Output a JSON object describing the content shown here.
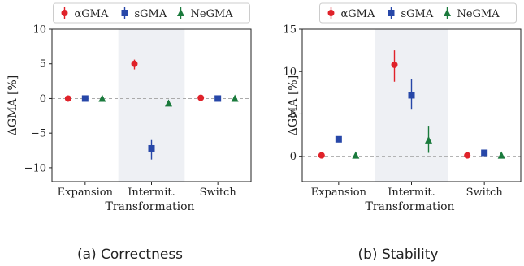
{
  "chart_data": [
    {
      "type": "scatter",
      "caption": "(a) Correctness",
      "xlabel": "Transformation",
      "ylabel": "ΔGMA [%]",
      "categories": [
        "Expansion",
        "Intermit.",
        "Switch"
      ],
      "ylim": [
        -12,
        10
      ],
      "yticks": [
        10,
        5,
        0,
        -5,
        -10
      ],
      "ytick_labels": [
        "10",
        "5",
        "0",
        "−5",
        "−10"
      ],
      "highlight_category": "Intermit.",
      "series": [
        {
          "name": "αGMA",
          "color": "#e0222a",
          "marker": "circle",
          "values": [
            0.0,
            5.0,
            0.1
          ],
          "err_low": [
            0.0,
            0.8,
            0.0
          ],
          "err_high": [
            0.0,
            0.6,
            0.0
          ]
        },
        {
          "name": "sGMA",
          "color": "#2747a8",
          "marker": "square",
          "values": [
            0.0,
            -7.2,
            0.0
          ],
          "err_low": [
            0.0,
            1.6,
            0.0
          ],
          "err_high": [
            0.0,
            1.2,
            0.0
          ]
        },
        {
          "name": "NeGMA",
          "color": "#1a7a3c",
          "marker": "triangle",
          "values": [
            0.0,
            -0.7,
            0.0
          ],
          "err_low": [
            0.0,
            0.0,
            0.0
          ],
          "err_high": [
            0.0,
            0.0,
            0.0
          ]
        }
      ],
      "baseline": 0,
      "grid": false,
      "legend": "top"
    },
    {
      "type": "scatter",
      "caption": "(b) Stability",
      "xlabel": "Transformation",
      "ylabel": "ΔGMA [%]",
      "categories": [
        "Expansion",
        "Intermit.",
        "Switch"
      ],
      "ylim": [
        -3,
        15
      ],
      "yticks": [
        15,
        10,
        5,
        0
      ],
      "ytick_labels": [
        "15",
        "10",
        "5",
        "0"
      ],
      "highlight_category": "Intermit.",
      "series": [
        {
          "name": "αGMA",
          "color": "#e0222a",
          "marker": "circle",
          "values": [
            0.1,
            10.8,
            0.1
          ],
          "err_low": [
            0.0,
            2.0,
            0.0
          ],
          "err_high": [
            0.0,
            1.7,
            0.0
          ]
        },
        {
          "name": "sGMA",
          "color": "#2747a8",
          "marker": "square",
          "values": [
            2.0,
            7.2,
            0.4
          ],
          "err_low": [
            0.0,
            1.7,
            0.0
          ],
          "err_high": [
            0.0,
            1.9,
            0.0
          ]
        },
        {
          "name": "NeGMA",
          "color": "#1a7a3c",
          "marker": "triangle",
          "values": [
            0.1,
            1.9,
            0.1
          ],
          "err_low": [
            0.0,
            1.5,
            0.0
          ],
          "err_high": [
            0.0,
            1.7,
            0.0
          ]
        }
      ],
      "baseline": 0,
      "grid": false,
      "legend": "top"
    }
  ]
}
